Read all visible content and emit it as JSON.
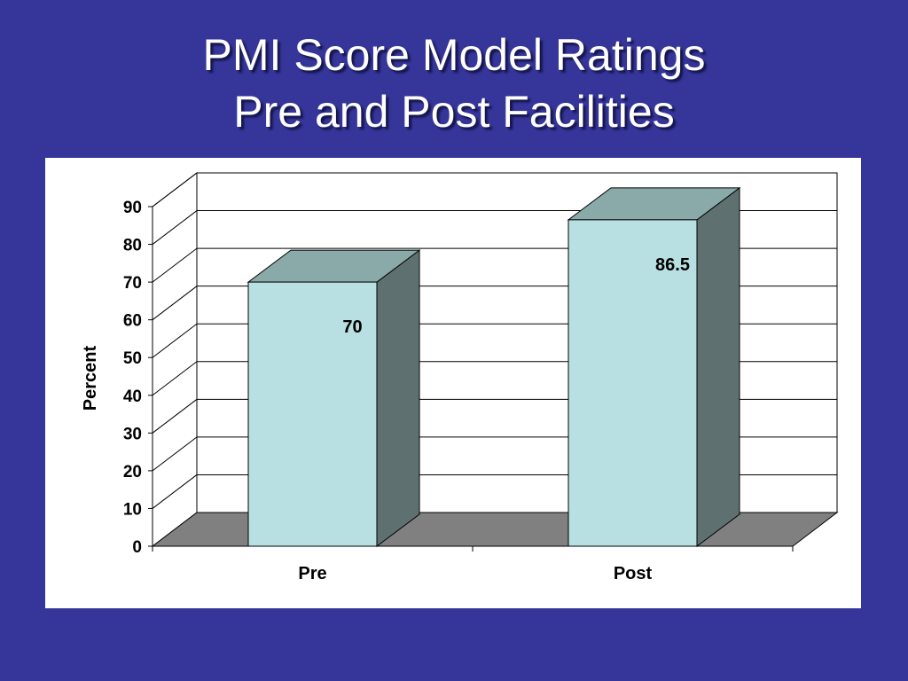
{
  "slide": {
    "title_line1": "PMI Score Model Ratings",
    "title_line2": "Pre and Post Facilities"
  },
  "colors": {
    "background": "#35359a",
    "bar_front": "#b8e0e2",
    "bar_top": "#8aa9a9",
    "bar_side": "#5e7070",
    "floor": "#808080"
  },
  "chart_data": {
    "type": "bar",
    "style": "3d",
    "title": "",
    "xlabel": "",
    "ylabel": "Percent",
    "categories": [
      "Pre",
      "Post"
    ],
    "values": [
      70,
      86.5
    ],
    "data_labels": [
      "70",
      "86.5"
    ],
    "ylim": [
      0,
      90
    ],
    "yticks": [
      0,
      10,
      20,
      30,
      40,
      50,
      60,
      70,
      80,
      90
    ],
    "grid": true,
    "legend": "none"
  }
}
